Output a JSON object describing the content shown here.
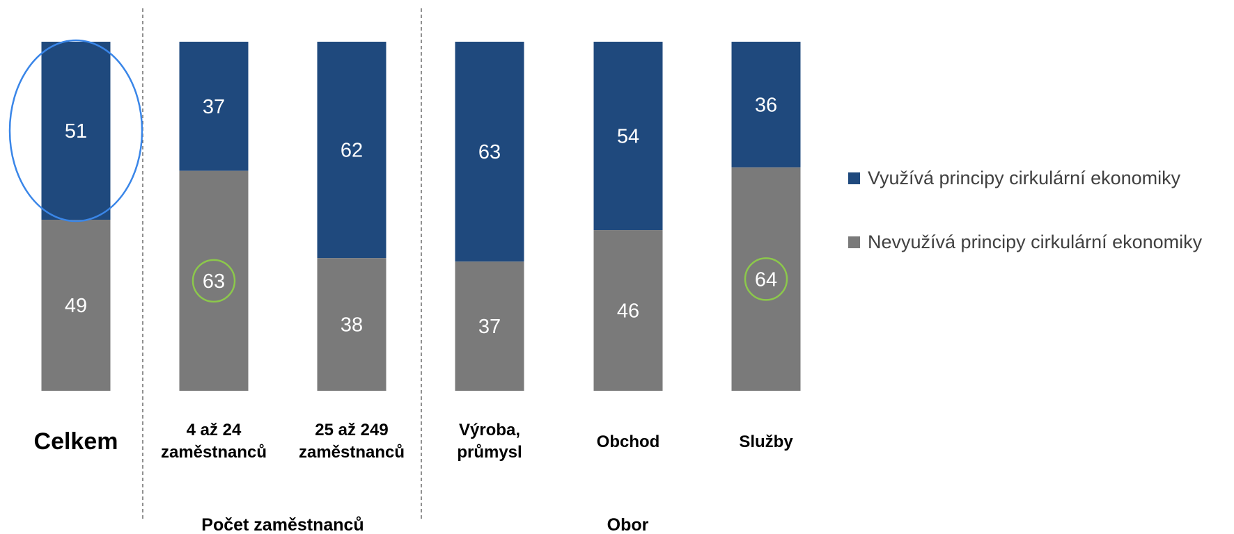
{
  "chart_data": {
    "type": "bar",
    "stacked": true,
    "percent_stacked": true,
    "categories": [
      [
        "Celkem"
      ],
      [
        "4 až 24",
        "zaměstnanců"
      ],
      [
        "25 až 249",
        "zaměstnanců"
      ],
      [
        "Výroba,",
        "průmysl"
      ],
      [
        "Obchod"
      ],
      [
        "Služby"
      ]
    ],
    "series": [
      {
        "name": "Využívá principy cirkulární ekonomiky",
        "color": "#1f497d",
        "values": [
          51,
          37,
          62,
          63,
          54,
          36
        ]
      },
      {
        "name": "Nevyužívá principy cirkulární ekonomiky",
        "color": "#7a7a7a",
        "values": [
          49,
          63,
          38,
          37,
          46,
          64
        ]
      }
    ],
    "groups": [
      {
        "label": "",
        "categories": [
          0
        ]
      },
      {
        "label": "Počet zaměstnanců",
        "categories": [
          1,
          2
        ]
      },
      {
        "label": "Obor",
        "categories": [
          3,
          4,
          5
        ]
      }
    ],
    "legend_position": "right",
    "grid": false,
    "ylim": [
      0,
      100
    ],
    "highlights": [
      {
        "category": 0,
        "series": 0,
        "shape": "ellipse",
        "color": "#3a86e8"
      },
      {
        "category": 1,
        "series": 1,
        "shape": "circle",
        "color": "#8cc84b"
      },
      {
        "category": 5,
        "series": 1,
        "shape": "circle",
        "color": "#8cc84b"
      }
    ]
  }
}
